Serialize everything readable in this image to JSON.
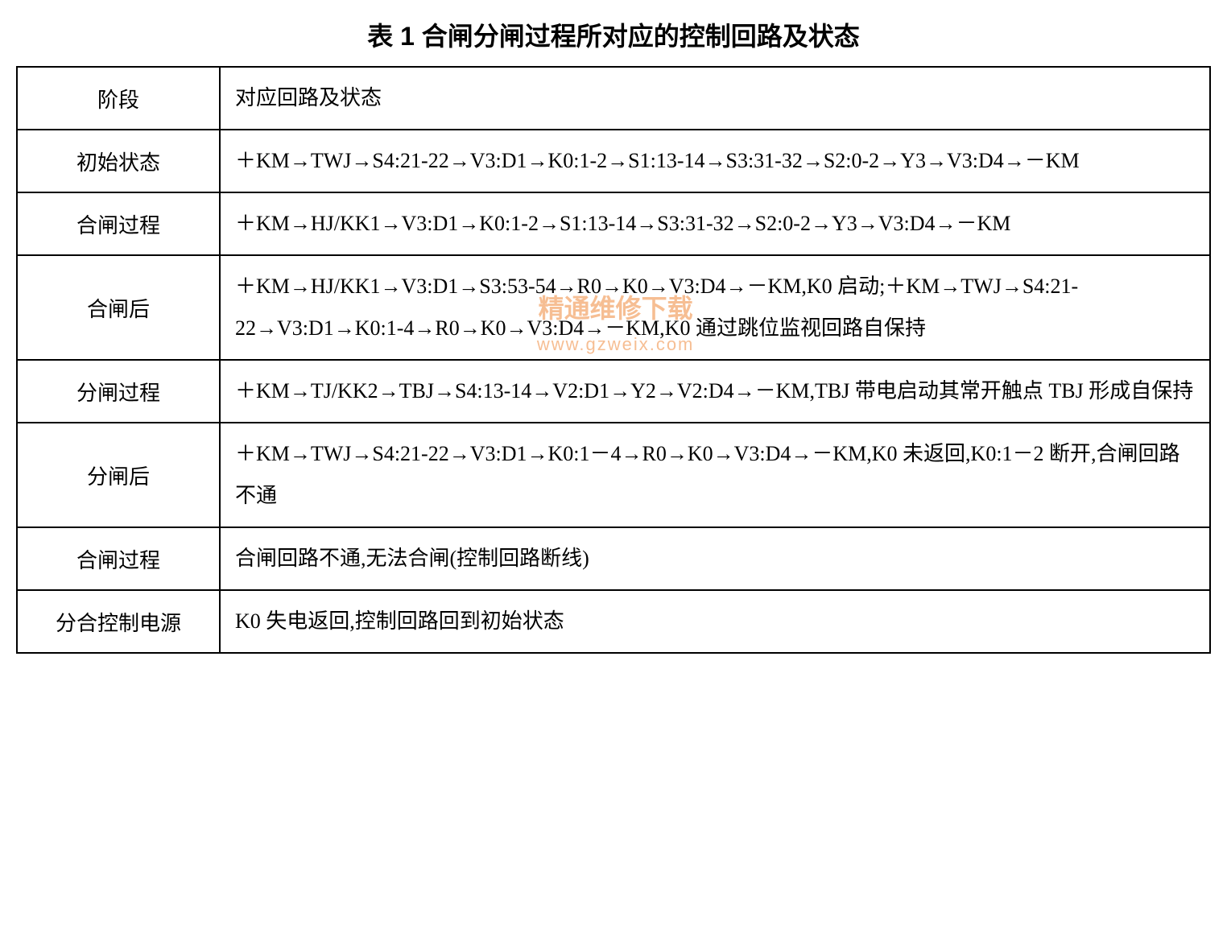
{
  "title": "表 1 合闸分闸过程所对应的控制回路及状态",
  "table": {
    "headers": {
      "phase": "阶段",
      "content": "对应回路及状态"
    },
    "rows": [
      {
        "phase": "初始状态",
        "content": "＋KM→TWJ→S4:21-22→V3:D1→K0:1-2→S1:13-14→S3:31-32→S2:0-2→Y3→V3:D4→－KM"
      },
      {
        "phase": "合闸过程",
        "content": "＋KM→HJ/KK1→V3:D1→K0:1-2→S1:13-14→S3:31-32→S2:0-2→Y3→V3:D4→－KM"
      },
      {
        "phase": "合闸后",
        "content": "＋KM→HJ/KK1→V3:D1→S3:53-54→R0→K0→V3:D4→－KM,K0 启动;＋KM→TWJ→S4:21-22→V3:D1→K0:1-4→R0→K0→V3:D4→－KM,K0 通过跳位监视回路自保持"
      },
      {
        "phase": "分闸过程",
        "content": "＋KM→TJ/KK2→TBJ→S4:13-14→V2:D1→Y2→V2:D4→－KM,TBJ 带电启动其常开触点 TBJ 形成自保持"
      },
      {
        "phase": "分闸后",
        "content": "＋KM→TWJ→S4:21-22→V3:D1→K0:1－4→R0→K0→V3:D4→－KM,K0 未返回,K0:1－2 断开,合闸回路不通"
      },
      {
        "phase": "合闸过程",
        "content": "合闸回路不通,无法合闸(控制回路断线)"
      },
      {
        "phase": "分合控制电源",
        "content": "K0 失电返回,控制回路回到初始状态"
      }
    ]
  },
  "watermark": {
    "text_main": "精通维修下载",
    "text_url": "www.gzweix.com",
    "color": "#f08a3c",
    "opacity": 0.55
  },
  "styles": {
    "border_color": "#000000",
    "border_width": 2,
    "background_color": "#ffffff",
    "text_color": "#000000",
    "title_fontsize": 32,
    "cell_fontsize": 26,
    "line_height": 2.0,
    "col_phase_width_pct": 17,
    "col_content_width_pct": 83
  }
}
